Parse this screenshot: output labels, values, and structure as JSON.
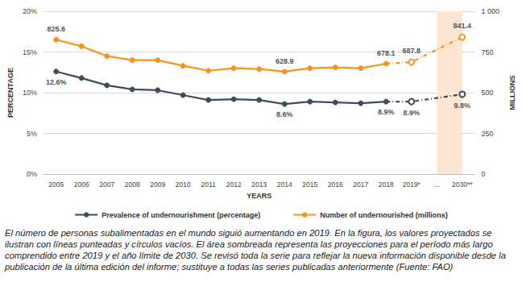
{
  "chart_data": {
    "type": "line",
    "categories": [
      "2005",
      "2006",
      "2007",
      "2008",
      "2009",
      "2010",
      "2011",
      "2012",
      "2013",
      "2014",
      "2015",
      "2016",
      "2017",
      "2018",
      "2019*",
      "...",
      "2030**"
    ],
    "x_label": "YEARS",
    "y_label": "PERCENTAGE",
    "y2_label": "MILLIONS",
    "ylim": [
      0,
      20
    ],
    "yticks": [
      {
        "value": 0,
        "label": "0%"
      },
      {
        "value": 5,
        "label": "5%"
      },
      {
        "value": 10,
        "label": "10%"
      },
      {
        "value": 15,
        "label": "15%"
      },
      {
        "value": 20,
        "label": "20%"
      }
    ],
    "y2lim": [
      0,
      1000
    ],
    "y2ticks": [
      0,
      250,
      500,
      750,
      {
        "value": 1000,
        "label": "1 000"
      }
    ],
    "grid": true,
    "legend": "bottom",
    "data_labels": true,
    "projected_categories": [
      "2019*",
      "2030**"
    ],
    "shaded_categories": [
      "...",
      "2030**"
    ],
    "series": [
      {
        "name": "Prevalence of undernourishment (percentage)",
        "color": "#3f4b5e",
        "marker": "circle",
        "line_style": "solid",
        "values": [
          12.6,
          11.8,
          10.9,
          10.4,
          10.3,
          9.7,
          9.1,
          9.2,
          9.1,
          8.6,
          8.9,
          8.8,
          8.7,
          8.9,
          8.9,
          null,
          9.8
        ],
        "value_labels": [
          "12.6%",
          null,
          null,
          null,
          null,
          null,
          null,
          null,
          null,
          "8.6%",
          null,
          null,
          null,
          "8.9%",
          "8.9%",
          null,
          "9.8%"
        ]
      },
      {
        "name": "Number of undernourished (millions)",
        "color": "#f7941d",
        "marker": "circle",
        "line_style": "solid",
        "axis": "y2",
        "values": [
          825.6,
          785,
          725,
          700,
          700,
          665,
          635,
          650,
          645,
          628.9,
          650,
          655,
          650,
          678.1,
          687.8,
          null,
          841.4
        ],
        "value_labels": [
          "825.6",
          null,
          null,
          null,
          null,
          null,
          null,
          null,
          null,
          "628.9",
          null,
          null,
          null,
          "678.1",
          "687.8",
          null,
          "841.4"
        ]
      }
    ],
    "caption": "El número de personas subalimentadas en el mundo siguió aumentando en 2019. En la figura, los valores proyectados se ilustran con líneas punteadas y círculos vacíos. El área sombreada representa las proyecciones para el período más largo comprendido entre 2019 y el año límite de 2030. Se revisó toda la serie para reflejar la nueva información disponible desde la publicación de la última edición del informe; sustituye a todas las series publicadas anteriormente (Fuente: FAO)"
  }
}
